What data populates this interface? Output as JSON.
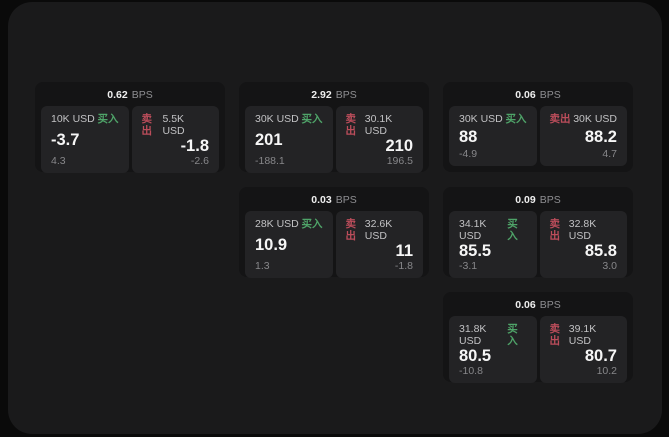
{
  "labels": {
    "buy": "买入",
    "sell": "卖出",
    "bps_suffix": "BPS"
  },
  "colors": {
    "page_bg": "#0a0a0a",
    "panel_bg": "#1a1a1b",
    "card_bg": "#141415",
    "tile_bg": "#232325",
    "buy": "#4fa469",
    "sell": "#bc4d5b"
  },
  "cards": [
    {
      "col": 1,
      "row": 1,
      "bps": "0.62",
      "buy": {
        "size": "10K USD",
        "value": "-3.7",
        "delta": "4.3"
      },
      "sell": {
        "size": "5.5K USD",
        "value": "-1.8",
        "delta": "-2.6"
      }
    },
    {
      "col": 2,
      "row": 1,
      "bps": "2.92",
      "buy": {
        "size": "30K USD",
        "value": "201",
        "delta": "-188.1"
      },
      "sell": {
        "size": "30.1K USD",
        "value": "210",
        "delta": "196.5"
      }
    },
    {
      "col": 3,
      "row": 1,
      "bps": "0.06",
      "buy": {
        "size": "30K USD",
        "value": "88",
        "delta": "-4.9"
      },
      "sell": {
        "size": "30K USD",
        "value": "88.2",
        "delta": "4.7"
      }
    },
    {
      "col": 2,
      "row": 2,
      "bps": "0.03",
      "buy": {
        "size": "28K USD",
        "value": "10.9",
        "delta": "1.3"
      },
      "sell": {
        "size": "32.6K USD",
        "value": "11",
        "delta": "-1.8"
      }
    },
    {
      "col": 3,
      "row": 2,
      "bps": "0.09",
      "buy": {
        "size": "34.1K USD",
        "value": "85.5",
        "delta": "-3.1"
      },
      "sell": {
        "size": "32.8K USD",
        "value": "85.8",
        "delta": "3.0"
      }
    },
    {
      "col": 3,
      "row": 3,
      "bps": "0.06",
      "buy": {
        "size": "31.8K USD",
        "value": "80.5",
        "delta": "-10.8"
      },
      "sell": {
        "size": "39.1K USD",
        "value": "80.7",
        "delta": "10.2"
      }
    }
  ]
}
